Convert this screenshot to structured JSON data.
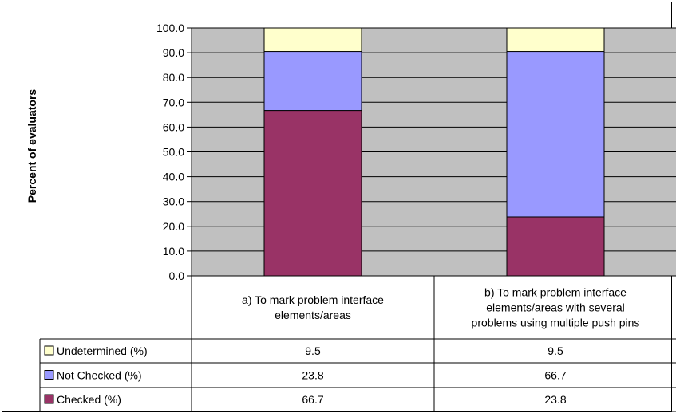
{
  "chart_data": {
    "type": "bar",
    "stacked": true,
    "title": "",
    "xlabel": "",
    "ylabel": "Percent of evaluators",
    "ylim": [
      0,
      100
    ],
    "ytick_step": 10,
    "yticks": [
      "0.0",
      "10.0",
      "20.0",
      "30.0",
      "40.0",
      "50.0",
      "60.0",
      "70.0",
      "80.0",
      "90.0",
      "100.0"
    ],
    "grid": true,
    "categories": [
      [
        "a) To mark problem interface",
        "elements/areas"
      ],
      [
        "b) To mark problem interface",
        "elements/areas with several",
        "problems using multiple push pins"
      ]
    ],
    "series": [
      {
        "name": "Checked (%)",
        "color": "#993366",
        "values": [
          66.7,
          23.8
        ],
        "labels": [
          "66.7",
          "23.8"
        ]
      },
      {
        "name": "Not Checked (%)",
        "color": "#9999ff",
        "values": [
          23.8,
          66.7
        ],
        "labels": [
          "23.8",
          "66.7"
        ]
      },
      {
        "name": "Undetermined (%)",
        "color": "#ffffcc",
        "values": [
          9.5,
          9.5
        ],
        "labels": [
          "9.5",
          "9.5"
        ]
      }
    ],
    "table_row_order": [
      "Undetermined (%)",
      "Not Checked (%)",
      "Checked (%)"
    ],
    "plot_background": "#c0c0c0"
  }
}
